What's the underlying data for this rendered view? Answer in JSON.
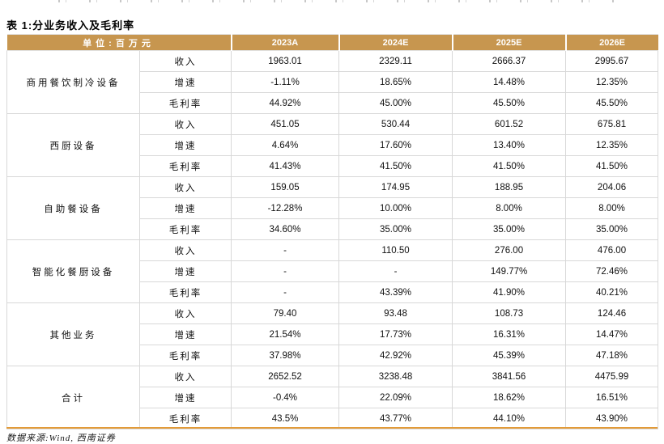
{
  "page": {
    "title": "表 1:分业务收入及毛利率",
    "source_note": "数据来源:Wind, 西南证券"
  },
  "table": {
    "unit_header": "单位:百万元",
    "year_columns": [
      "2023A",
      "2024E",
      "2025E",
      "2026E"
    ],
    "metric_labels": [
      "收入",
      "增速",
      "毛利率"
    ],
    "groups": [
      {
        "name": "商用餐饮制冷设备",
        "rows": [
          {
            "metric": "收入",
            "values": [
              "1963.01",
              "2329.11",
              "2666.37",
              "2995.67"
            ]
          },
          {
            "metric": "增速",
            "values": [
              "-1.11%",
              "18.65%",
              "14.48%",
              "12.35%"
            ]
          },
          {
            "metric": "毛利率",
            "values": [
              "44.92%",
              "45.00%",
              "45.50%",
              "45.50%"
            ]
          }
        ]
      },
      {
        "name": "西厨设备",
        "rows": [
          {
            "metric": "收入",
            "values": [
              "451.05",
              "530.44",
              "601.52",
              "675.81"
            ]
          },
          {
            "metric": "增速",
            "values": [
              "4.64%",
              "17.60%",
              "13.40%",
              "12.35%"
            ]
          },
          {
            "metric": "毛利率",
            "values": [
              "41.43%",
              "41.50%",
              "41.50%",
              "41.50%"
            ]
          }
        ]
      },
      {
        "name": "自助餐设备",
        "rows": [
          {
            "metric": "收入",
            "values": [
              "159.05",
              "174.95",
              "188.95",
              "204.06"
            ]
          },
          {
            "metric": "增速",
            "values": [
              "-12.28%",
              "10.00%",
              "8.00%",
              "8.00%"
            ]
          },
          {
            "metric": "毛利率",
            "values": [
              "34.60%",
              "35.00%",
              "35.00%",
              "35.00%"
            ]
          }
        ]
      },
      {
        "name": "智能化餐厨设备",
        "rows": [
          {
            "metric": "收入",
            "values": [
              "-",
              "110.50",
              "276.00",
              "476.00"
            ]
          },
          {
            "metric": "增速",
            "values": [
              "-",
              "-",
              "149.77%",
              "72.46%"
            ]
          },
          {
            "metric": "毛利率",
            "values": [
              "-",
              "43.39%",
              "41.90%",
              "40.21%"
            ]
          }
        ]
      },
      {
        "name": "其他业务",
        "rows": [
          {
            "metric": "收入",
            "values": [
              "79.40",
              "93.48",
              "108.73",
              "124.46"
            ]
          },
          {
            "metric": "增速",
            "values": [
              "21.54%",
              "17.73%",
              "16.31%",
              "14.47%"
            ]
          },
          {
            "metric": "毛利率",
            "values": [
              "37.98%",
              "42.92%",
              "45.39%",
              "47.18%"
            ]
          }
        ]
      },
      {
        "name": "合计",
        "rows": [
          {
            "metric": "收入",
            "values": [
              "2652.52",
              "3238.48",
              "3841.56",
              "4475.99"
            ]
          },
          {
            "metric": "增速",
            "values": [
              "-0.4%",
              "22.09%",
              "18.62%",
              "16.51%"
            ]
          },
          {
            "metric": "毛利率",
            "values": [
              "43.5%",
              "43.77%",
              "44.10%",
              "43.90%"
            ]
          }
        ]
      }
    ]
  },
  "colors": {
    "header_bg": "#C7964F",
    "header_text": "#FFFFFF",
    "grid_border": "#D8D8D8",
    "bottom_rule": "#E39B38"
  }
}
